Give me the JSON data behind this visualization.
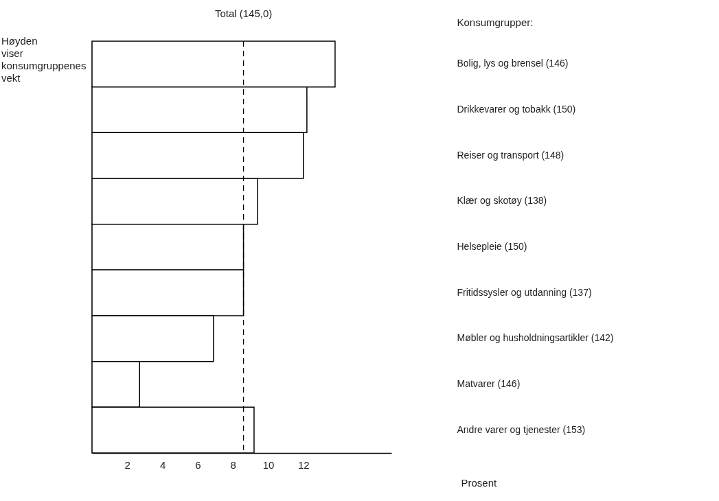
{
  "chart_data": {
    "type": "bar",
    "orientation": "horizontal",
    "ylabel": "Konsumgrupper:",
    "xlabel": "Prosent",
    "categories": [
      "Bolig, lys og brensel (146)",
      "Drikkevarer og tobakk (150)",
      "Reiser og transport (148)",
      "Klær og skotøy (138)",
      "Helsepleie (150)",
      "Fritidssysler og utdanning (137)",
      "Møbler og husholdningsartikler (142)",
      "Matvarer (146)",
      "Andre varer og tjenester (153)"
    ],
    "values": [
      13.8,
      12.2,
      12.0,
      9.4,
      8.6,
      8.6,
      6.9,
      2.7,
      9.2
    ],
    "color": "#ffffff",
    "xlim": [
      0,
      17
    ],
    "xticks": [
      2,
      4,
      6,
      8,
      10,
      12
    ],
    "ref_lines": [
      {
        "axis": "x",
        "value": 8.6,
        "label": "Total (145,0)",
        "line_style": "dashed"
      }
    ],
    "annotations": [
      "Høyden viser konsumgruppenes vekt"
    ],
    "grid": false
  }
}
